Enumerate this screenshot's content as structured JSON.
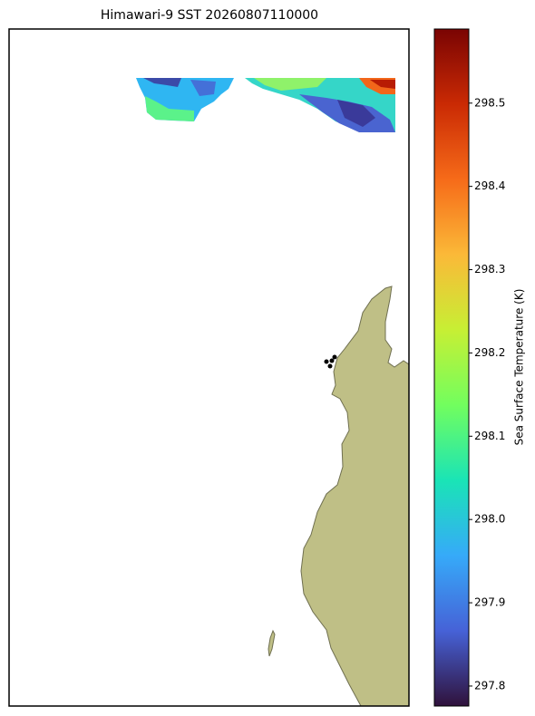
{
  "chart_data": {
    "type": "map",
    "title": "Himawari-9 SST 20260807110000",
    "colorbar": {
      "label": "Sea Surface Temperature (K)",
      "colormap": "turbo",
      "lim": [
        297.776,
        298.589
      ],
      "ticks": [
        297.8,
        297.9,
        {
          "value": 298,
          "label": "298.0"
        },
        298.1,
        298.2,
        298.3,
        298.4,
        298.5
      ]
    },
    "land_color": "#bfbf86"
  }
}
